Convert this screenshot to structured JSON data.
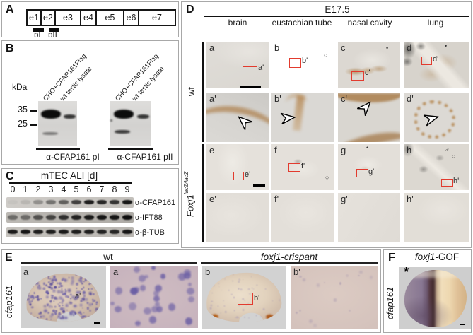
{
  "panelA": {
    "letter": "A",
    "exons": [
      "e1",
      "e2",
      "e3",
      "e4",
      "e5",
      "e6",
      "e7"
    ],
    "probe1": "pI",
    "probe2": "pII"
  },
  "panelB": {
    "letter": "B",
    "kda": "kDa",
    "marker35": "35",
    "marker25": "25",
    "lane1": "CHO+CFAP161Flag",
    "lane2": "wt testis lysate",
    "caption1": "α-CFAP161 pI",
    "caption2": "α-CFAP161 pII"
  },
  "panelC": {
    "letter": "C",
    "title": "mTEC ALI [d]",
    "lanes": [
      "0",
      "1",
      "2",
      "3",
      "4",
      "5",
      "6",
      "7",
      "8",
      "9"
    ],
    "row_labels": [
      "α-CFAP161",
      "α-IFT88",
      "α-β-TUB"
    ],
    "band_opacities": {
      "cfap161": [
        0.04,
        0.1,
        0.3,
        0.45,
        0.55,
        0.72,
        0.9,
        0.85,
        0.78,
        0.95
      ],
      "ift88": [
        0.45,
        0.45,
        0.6,
        0.68,
        0.8,
        0.88,
        0.92,
        0.95,
        0.95,
        1.0
      ],
      "btub": [
        0.92,
        0.95,
        0.9,
        0.9,
        0.93,
        0.9,
        0.9,
        0.88,
        0.85,
        0.95
      ]
    }
  },
  "panelD": {
    "letter": "D",
    "title": "E17.5",
    "columns": [
      "brain",
      "eustachian tube",
      "nasal cavity",
      "lung"
    ],
    "group_wt": "wt",
    "group_mut_base": "Foxj1",
    "group_mut_sup": "lacZ/lacZ",
    "cells": {
      "a": {
        "letter": "a",
        "ref": "a'"
      },
      "b": {
        "letter": "b",
        "ref": "b'",
        "mark": "○"
      },
      "c": {
        "letter": "c",
        "ref": "c'",
        "mark": "•"
      },
      "d": {
        "letter": "d",
        "ref": "d'",
        "mark": "•"
      },
      "ap": {
        "letter": "a'"
      },
      "bp": {
        "letter": "b'"
      },
      "cp": {
        "letter": "c'"
      },
      "dp": {
        "letter": "d'"
      },
      "e": {
        "letter": "e",
        "ref": "e'"
      },
      "f": {
        "letter": "f",
        "ref": "f'",
        "mark": "○"
      },
      "g": {
        "letter": "g",
        "ref": "g'",
        "mark": "•"
      },
      "h": {
        "letter": "h",
        "ref": "h'",
        "mark": "♂",
        "mark2": "○"
      },
      "ep": {
        "letter": "e'"
      },
      "fp": {
        "letter": "f'"
      },
      "gp": {
        "letter": "g'"
      },
      "hp": {
        "letter": "h'"
      }
    }
  },
  "panelE": {
    "letter": "E",
    "header_wt": "wt",
    "header_crispant": "foxj1-crispant",
    "side_label": "cfap161",
    "cells": {
      "a": {
        "letter": "a",
        "ref": "a'"
      },
      "ap": {
        "letter": "a'"
      },
      "b": {
        "letter": "b",
        "ref": "b'"
      },
      "bp": {
        "letter": "b'"
      }
    }
  },
  "panelF": {
    "letter": "F",
    "title_italic": "foxj1",
    "title_rest": "-GOF",
    "side_label": "cfap161",
    "asterisk": "*"
  },
  "colors": {
    "roi_box": "#e23b2e",
    "stain_brown": "#a5703a",
    "insitu_purple": "#6f63a8",
    "band_black": "#0c0c0c"
  }
}
